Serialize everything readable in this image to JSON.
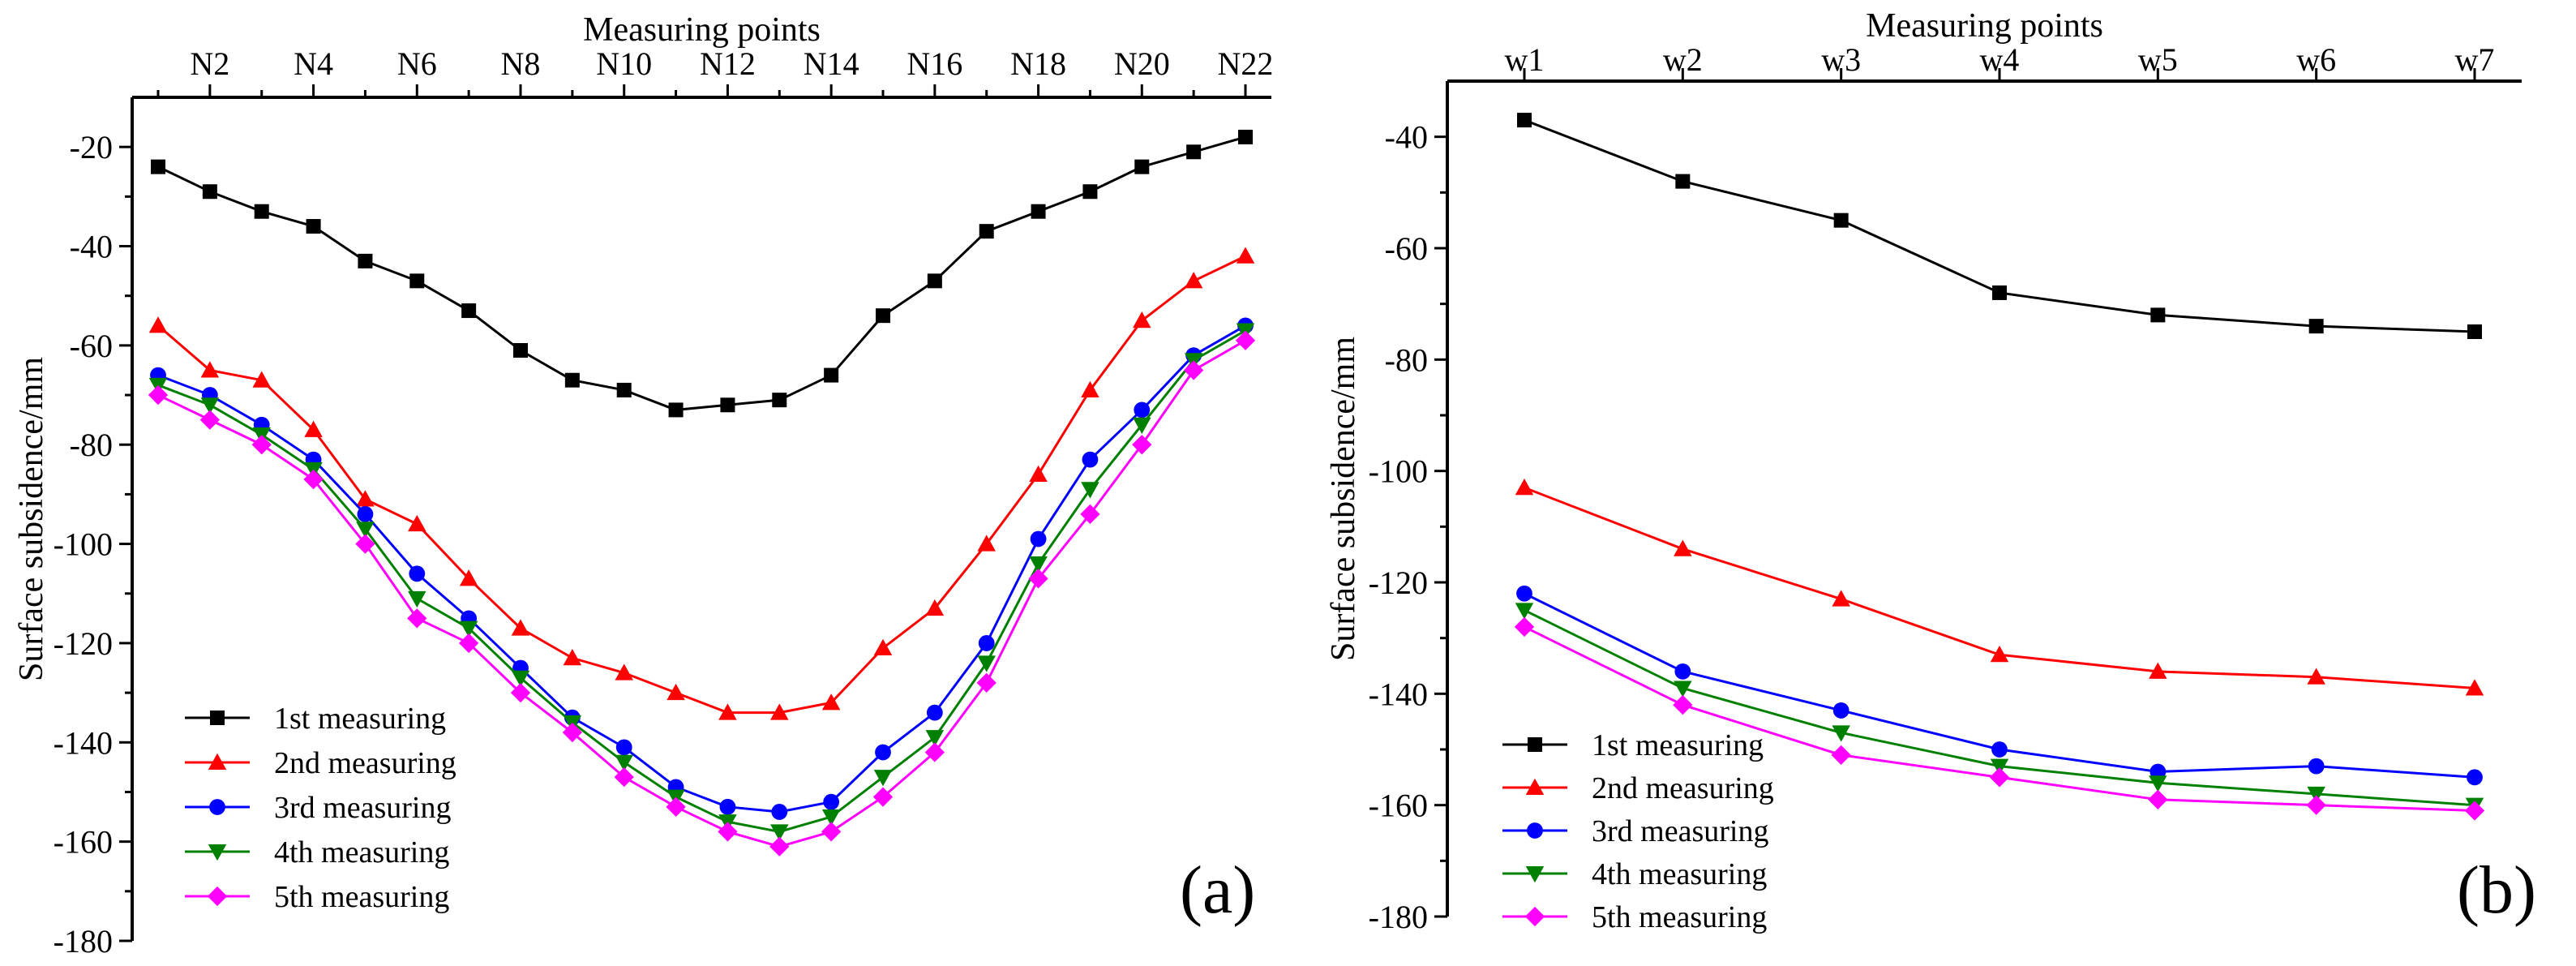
{
  "chart_data": [
    {
      "id": "a",
      "type": "line",
      "panel_label": "(a)",
      "xlabel": "Measuring points",
      "ylabel": "Surface subsidence/mm",
      "x_axis_position": "top",
      "categories": [
        "N1",
        "N2",
        "N3",
        "N4",
        "N5",
        "N6",
        "N7",
        "N8",
        "N9",
        "N10",
        "N11",
        "N12",
        "N13",
        "N14",
        "N15",
        "N16",
        "N17",
        "N18",
        "N19",
        "N20",
        "N21",
        "N22"
      ],
      "tick_labels": [
        "N2",
        "N4",
        "N6",
        "N8",
        "N10",
        "N12",
        "N14",
        "N16",
        "N18",
        "N20",
        "N22"
      ],
      "ylim": [
        -180,
        -10
      ],
      "yticks": [
        -20,
        -40,
        -60,
        -80,
        -100,
        -120,
        -140,
        -160,
        -180
      ],
      "legend_position": "bottom-left",
      "series": [
        {
          "name": "1st measuring",
          "color": "#000000",
          "marker": "square",
          "values": [
            -24,
            -29,
            -33,
            -36,
            -43,
            -47,
            -53,
            -61,
            -67,
            -69,
            -73,
            -72,
            -71,
            -66,
            -54,
            -47,
            -37,
            -33,
            -29,
            -24,
            -21,
            -18
          ]
        },
        {
          "name": "2nd measuring",
          "color": "#ff0000",
          "marker": "triangle-up",
          "values": [
            -56,
            -65,
            -67,
            -77,
            -91,
            -96,
            -107,
            -117,
            -123,
            -126,
            -130,
            -134,
            -134,
            -132,
            -121,
            -113,
            -100,
            -86,
            -69,
            -55,
            -47,
            -42
          ]
        },
        {
          "name": "3rd measuring",
          "color": "#0000ff",
          "marker": "circle",
          "values": [
            -66,
            -70,
            -76,
            -83,
            -94,
            -106,
            -115,
            -125,
            -135,
            -141,
            -149,
            -153,
            -154,
            -152,
            -142,
            -134,
            -120,
            -99,
            -83,
            -73,
            -62,
            -56
          ]
        },
        {
          "name": "4th measuring",
          "color": "#008000",
          "marker": "triangle-down",
          "values": [
            -68,
            -72,
            -78,
            -85,
            -97,
            -111,
            -117,
            -127,
            -136,
            -144,
            -151,
            -156,
            -158,
            -155,
            -147,
            -139,
            -124,
            -104,
            -89,
            -76,
            -63,
            -57
          ]
        },
        {
          "name": "5th measuring",
          "color": "#ff00ff",
          "marker": "diamond",
          "values": [
            -70,
            -75,
            -80,
            -87,
            -100,
            -115,
            -120,
            -130,
            -138,
            -147,
            -153,
            -158,
            -161,
            -158,
            -151,
            -142,
            -128,
            -107,
            -94,
            -80,
            -65,
            -59
          ]
        }
      ]
    },
    {
      "id": "b",
      "type": "line",
      "panel_label": "(b)",
      "xlabel": "Measuring points",
      "ylabel": "Surface subsidence/mm",
      "x_axis_position": "top",
      "categories": [
        "w1",
        "w2",
        "w3",
        "w4",
        "w5",
        "w6",
        "w7"
      ],
      "tick_labels": [
        "w1",
        "w2",
        "w3",
        "w4",
        "w5",
        "w6",
        "w7"
      ],
      "ylim": [
        -180,
        -30
      ],
      "yticks": [
        -40,
        -60,
        -80,
        -100,
        -120,
        -140,
        -160,
        -180
      ],
      "legend_position": "bottom-left",
      "series": [
        {
          "name": "1st measuring",
          "color": "#000000",
          "marker": "square",
          "values": [
            -37,
            -48,
            -55,
            -68,
            -72,
            -74,
            -75
          ]
        },
        {
          "name": "2nd measuring",
          "color": "#ff0000",
          "marker": "triangle-up",
          "values": [
            -103,
            -114,
            -123,
            -133,
            -136,
            -137,
            -139
          ]
        },
        {
          "name": "3rd measuring",
          "color": "#0000ff",
          "marker": "circle",
          "values": [
            -122,
            -136,
            -143,
            -150,
            -154,
            -153,
            -155
          ]
        },
        {
          "name": "4th measuring",
          "color": "#008000",
          "marker": "triangle-down",
          "values": [
            -125,
            -139,
            -147,
            -153,
            -156,
            -158,
            -160
          ]
        },
        {
          "name": "5th measuring",
          "color": "#ff00ff",
          "marker": "diamond",
          "values": [
            -128,
            -142,
            -151,
            -155,
            -159,
            -160,
            -161
          ]
        }
      ]
    }
  ]
}
